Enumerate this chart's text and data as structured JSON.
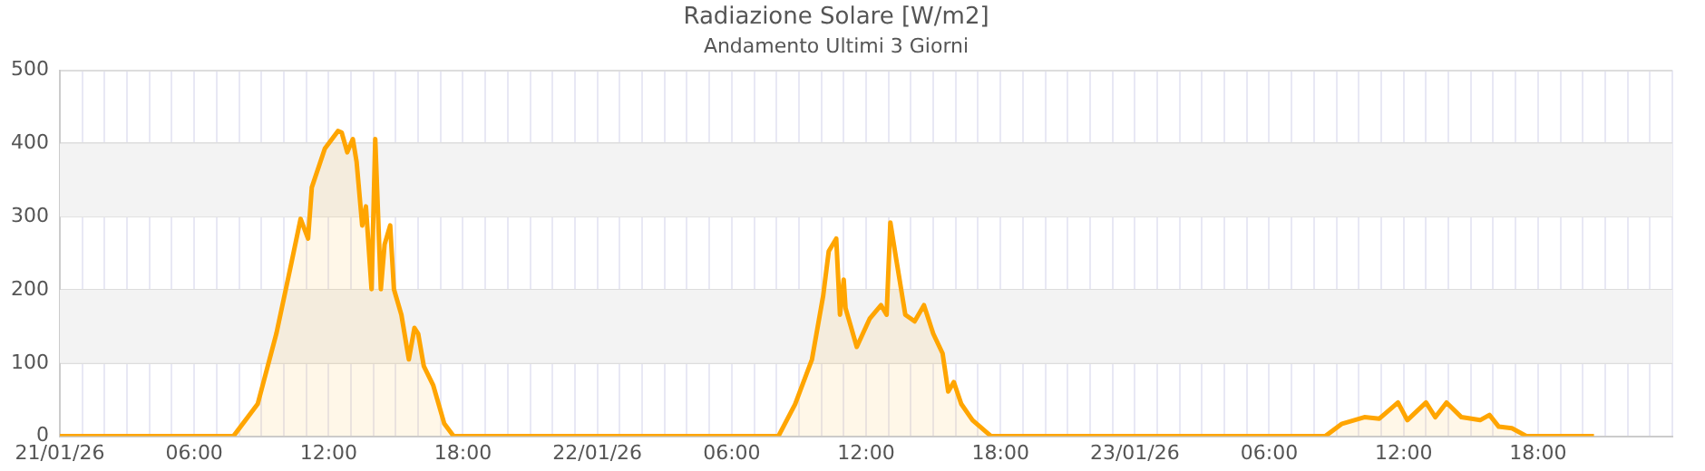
{
  "chart_data": {
    "type": "area",
    "title": "Radiazione Solare [W/m2]",
    "subtitle": "Andamento Ultimi 3 Giorni",
    "x": [
      "--01-21T00:00",
      "--01-21T07:45",
      "--01-21T08:50",
      "--01-21T09:40",
      "--01-21T10:20",
      "--01-21T10:45",
      "--01-21T11:05",
      "--01-21T11:15",
      "--01-21T11:50",
      "--01-21T12:25",
      "--01-21T12:35",
      "--01-21T12:50",
      "--01-21T13:05",
      "--01-21T13:15",
      "--01-21T13:30",
      "--01-21T13:40",
      "--01-21T13:55",
      "--01-21T14:05",
      "--01-21T14:20",
      "--01-21T14:30",
      "--01-21T14:45",
      "--01-21T14:55",
      "--01-21T15:15",
      "--01-21T15:35",
      "--01-21T15:50",
      "--01-21T16:00",
      "--01-21T16:15",
      "--01-21T16:40",
      "--01-21T17:10",
      "--01-21T17:35",
      "--01-22T08:05",
      "--01-22T08:50",
      "--01-22T09:35",
      "--01-22T10:05",
      "--01-22T10:20",
      "--01-22T10:40",
      "--01-22T10:50",
      "--01-22T11:00",
      "--01-22T11:05",
      "--01-22T11:35",
      "--01-22T12:10",
      "--01-22T12:40",
      "--01-22T12:55",
      "--01-22T13:05",
      "--01-22T13:20",
      "--01-22T13:45",
      "--01-22T14:10",
      "--01-22T14:35",
      "--01-22T15:00",
      "--01-22T15:25",
      "--01-22T15:40",
      "--01-22T15:55",
      "--01-22T16:15",
      "--01-22T16:45",
      "--01-22T17:35",
      "--01-23T08:30",
      "--01-23T09:15",
      "--01-23T10:15",
      "--01-23T10:55",
      "--01-23T11:45",
      "--01-23T12:10",
      "--01-23T13:00",
      "--01-23T13:25",
      "--01-23T13:55",
      "--01-23T14:35",
      "--01-23T15:25",
      "--01-23T15:50",
      "--01-23T16:15",
      "--01-23T16:50",
      "--01-23T17:30",
      "--01-23T20:30"
    ],
    "series": [
      {
        "color": "#ffa500",
        "values": [
          0,
          0,
          44,
          140,
          236,
          297,
          270,
          340,
          393,
          417,
          415,
          388,
          406,
          375,
          288,
          314,
          201,
          406,
          201,
          262,
          288,
          201,
          166,
          105,
          148,
          140,
          96,
          70,
          17,
          0,
          0,
          44,
          105,
          192,
          253,
          270,
          166,
          214,
          175,
          122,
          161,
          179,
          166,
          292,
          244,
          166,
          157,
          179,
          140,
          113,
          61,
          74,
          44,
          22,
          0,
          0,
          17,
          26,
          24,
          46,
          22,
          46,
          26,
          46,
          26,
          22,
          29,
          13,
          11,
          0,
          0
        ]
      }
    ],
    "xlim": [
      "--01-21T00:00",
      "--01-24T00:00"
    ],
    "xticks": [
      {
        "value": "--01-21T00:00",
        "label": "21/01/26"
      },
      {
        "value": "--01-21T01:00",
        "label": null
      },
      {
        "value": "--01-21T02:00",
        "label": null
      },
      {
        "value": "--01-21T03:00",
        "label": null
      },
      {
        "value": "--01-21T04:00",
        "label": null
      },
      {
        "value": "--01-21T05:00",
        "label": null
      },
      {
        "value": "--01-21T06:00",
        "label": "06:00"
      },
      {
        "value": "--01-21T07:00",
        "label": null
      },
      {
        "value": "--01-21T08:00",
        "label": null
      },
      {
        "value": "--01-21T09:00",
        "label": null
      },
      {
        "value": "--01-21T10:00",
        "label": null
      },
      {
        "value": "--01-21T11:00",
        "label": null
      },
      {
        "value": "--01-21T12:00",
        "label": "12:00"
      },
      {
        "value": "--01-21T13:00",
        "label": null
      },
      {
        "value": "--01-21T14:00",
        "label": null
      },
      {
        "value": "--01-21T15:00",
        "label": null
      },
      {
        "value": "--01-21T16:00",
        "label": null
      },
      {
        "value": "--01-21T17:00",
        "label": null
      },
      {
        "value": "--01-21T18:00",
        "label": "18:00"
      },
      {
        "value": "--01-21T19:00",
        "label": null
      },
      {
        "value": "--01-21T20:00",
        "label": null
      },
      {
        "value": "--01-21T21:00",
        "label": null
      },
      {
        "value": "--01-21T22:00",
        "label": null
      },
      {
        "value": "--01-21T23:00",
        "label": null
      },
      {
        "value": "--01-22T00:00",
        "label": "22/01/26"
      },
      {
        "value": "--01-22T01:00",
        "label": null
      },
      {
        "value": "--01-22T02:00",
        "label": null
      },
      {
        "value": "--01-22T03:00",
        "label": null
      },
      {
        "value": "--01-22T04:00",
        "label": null
      },
      {
        "value": "--01-22T05:00",
        "label": null
      },
      {
        "value": "--01-22T06:00",
        "label": "06:00"
      },
      {
        "value": "--01-22T07:00",
        "label": null
      },
      {
        "value": "--01-22T08:00",
        "label": null
      },
      {
        "value": "--01-22T09:00",
        "label": null
      },
      {
        "value": "--01-22T10:00",
        "label": null
      },
      {
        "value": "--01-22T11:00",
        "label": null
      },
      {
        "value": "--01-22T12:00",
        "label": "12:00"
      },
      {
        "value": "--01-22T13:00",
        "label": null
      },
      {
        "value": "--01-22T14:00",
        "label": null
      },
      {
        "value": "--01-22T15:00",
        "label": null
      },
      {
        "value": "--01-22T16:00",
        "label": null
      },
      {
        "value": "--01-22T17:00",
        "label": null
      },
      {
        "value": "--01-22T18:00",
        "label": "18:00"
      },
      {
        "value": "--01-22T19:00",
        "label": null
      },
      {
        "value": "--01-22T20:00",
        "label": null
      },
      {
        "value": "--01-22T21:00",
        "label": null
      },
      {
        "value": "--01-22T22:00",
        "label": null
      },
      {
        "value": "--01-22T23:00",
        "label": null
      },
      {
        "value": "--01-23T00:00",
        "label": "23/01/26"
      },
      {
        "value": "--01-23T01:00",
        "label": null
      },
      {
        "value": "--01-23T02:00",
        "label": null
      },
      {
        "value": "--01-23T03:00",
        "label": null
      },
      {
        "value": "--01-23T04:00",
        "label": null
      },
      {
        "value": "--01-23T05:00",
        "label": null
      },
      {
        "value": "--01-23T06:00",
        "label": "06:00"
      },
      {
        "value": "--01-23T07:00",
        "label": null
      },
      {
        "value": "--01-23T08:00",
        "label": null
      },
      {
        "value": "--01-23T09:00",
        "label": null
      },
      {
        "value": "--01-23T10:00",
        "label": null
      },
      {
        "value": "--01-23T11:00",
        "label": null
      },
      {
        "value": "--01-23T12:00",
        "label": "12:00"
      },
      {
        "value": "--01-23T13:00",
        "label": null
      },
      {
        "value": "--01-23T14:00",
        "label": null
      },
      {
        "value": "--01-23T15:00",
        "label": null
      },
      {
        "value": "--01-23T16:00",
        "label": null
      },
      {
        "value": "--01-23T17:00",
        "label": null
      },
      {
        "value": "--01-23T18:00",
        "label": "18:00"
      },
      {
        "value": "--01-23T19:00",
        "label": null
      },
      {
        "value": "--01-23T20:00",
        "label": null
      },
      {
        "value": "--01-23T21:00",
        "label": null
      },
      {
        "value": "--01-23T22:00",
        "label": null
      },
      {
        "value": "--01-23T23:00",
        "label": null
      },
      {
        "value": "--01-24T00:00",
        "label": null
      }
    ],
    "ylim": [
      0,
      500
    ],
    "yticks": [
      0,
      100,
      200,
      300,
      400,
      500
    ],
    "bands": [
      {
        "axis": "y",
        "from": 100,
        "to": 200,
        "color": "#f3f3f3"
      },
      {
        "axis": "y",
        "from": 300,
        "to": 400,
        "color": "#f3f3f3"
      }
    ],
    "grid": true,
    "legend": false,
    "marker": "none",
    "line_style": "solid"
  }
}
